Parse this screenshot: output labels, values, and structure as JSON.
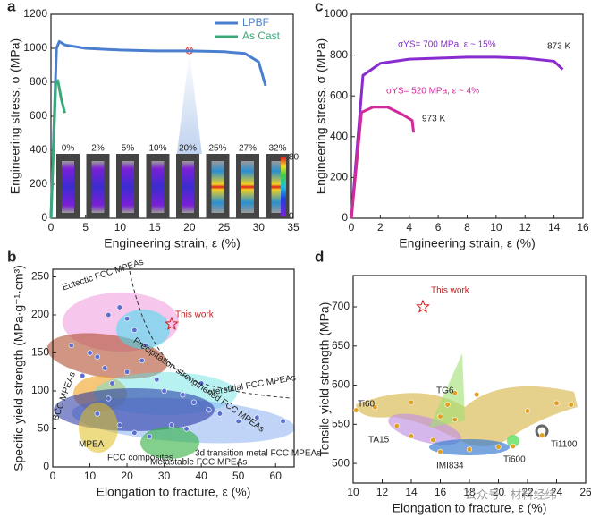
{
  "chart_data": [
    {
      "panel": "a",
      "type": "line",
      "xlabel": "Engineering strain, ε (%)",
      "ylabel": "Engineering stress, σ (MPa)",
      "xlim": [
        0,
        35
      ],
      "ylim": [
        0,
        1200
      ],
      "xticks": [
        0,
        5,
        10,
        15,
        20,
        25,
        30,
        35
      ],
      "yticks": [
        0,
        200,
        400,
        600,
        800,
        1000,
        1200
      ],
      "legend": "upper right",
      "series": [
        {
          "name": "LPBF",
          "color": "#4a7fd0",
          "x": [
            0,
            0.8,
            1.2,
            2,
            5,
            10,
            15,
            20,
            25,
            28,
            30,
            31
          ],
          "values": [
            0,
            1000,
            1040,
            1020,
            1000,
            990,
            985,
            985,
            980,
            970,
            920,
            780
          ]
        },
        {
          "name": "As Cast",
          "color": "#3aa878",
          "x": [
            0,
            0.7,
            1,
            1.5,
            2
          ],
          "values": [
            0,
            800,
            810,
            700,
            620
          ]
        }
      ],
      "inset_labels": [
        "0%",
        "2%",
        "5%",
        "10%",
        "20%",
        "25%",
        "27%",
        "32%"
      ],
      "colorbar_ticks": [
        0,
        80
      ]
    },
    {
      "panel": "c",
      "type": "line",
      "xlabel": "Engineering strain, ε (%)",
      "ylabel": "Engineering stress, σ (MPa)",
      "xlim": [
        0,
        16
      ],
      "ylim": [
        0,
        1000
      ],
      "xticks": [
        0,
        2,
        4,
        6,
        8,
        10,
        12,
        14,
        16
      ],
      "yticks": [
        0,
        200,
        400,
        600,
        800,
        1000
      ],
      "series": [
        {
          "color": "#8a2bd0",
          "x": [
            0,
            0.8,
            2,
            4,
            6,
            8,
            10,
            12,
            14,
            14.6
          ],
          "values": [
            0,
            700,
            760,
            780,
            785,
            790,
            790,
            785,
            770,
            730
          ]
        },
        {
          "color": "#d12a9a",
          "x": [
            0,
            0.7,
            1.5,
            2.5,
            3.5,
            4.2,
            4.3
          ],
          "values": [
            0,
            520,
            545,
            545,
            510,
            480,
            420
          ]
        }
      ],
      "annotations": [
        "σYS= 700 MPa, ε ~ 15%",
        "873 K",
        "σYS= 520 MPa, ε ~ 4%",
        "973 K"
      ]
    },
    {
      "panel": "b",
      "type": "scatter",
      "xlabel": "Elongation to fracture, ε (%)",
      "ylabel": "Specific yield strength (MPa·g⁻¹·cm³)",
      "xlim": [
        0,
        65
      ],
      "ylim": [
        0,
        260
      ],
      "xticks": [
        0,
        10,
        20,
        30,
        40,
        50,
        60
      ],
      "yticks": [
        0,
        50,
        100,
        150,
        200,
        250
      ],
      "color": "#5a6fd0",
      "points": {
        "x": [
          5,
          10,
          12,
          15,
          18,
          20,
          22,
          25,
          8,
          14,
          16,
          20,
          24,
          28,
          30,
          35,
          38,
          40,
          45,
          50,
          55,
          62,
          12,
          18,
          22,
          26,
          32,
          36,
          42,
          15
        ],
        "y": [
          160,
          150,
          145,
          200,
          210,
          195,
          180,
          160,
          120,
          130,
          110,
          125,
          140,
          115,
          100,
          95,
          85,
          110,
          70,
          60,
          65,
          60,
          70,
          55,
          45,
          40,
          55,
          50,
          75,
          90
        ]
      },
      "highlight": {
        "x": 32,
        "y": 188
      },
      "annotations": [
        "This work",
        "Eutectic FCC MPEAs",
        "Precipitation-strengthened FCC MPEAs",
        "Interstitial FCC MPEAs",
        "BCC MPEAs",
        "MPEA",
        "FCC composites",
        "Metastable FCC MPEAs",
        "3d transition metal FCC MPEAs"
      ]
    },
    {
      "panel": "d",
      "type": "scatter",
      "xlabel": "Elongation to fracture, ε (%)",
      "ylabel": "Tensile yield strength (MPa)",
      "xlim": [
        10,
        26
      ],
      "ylim": [
        475,
        740
      ],
      "xticks": [
        10,
        12,
        14,
        16,
        18,
        20,
        22,
        24,
        26
      ],
      "yticks": [
        500,
        550,
        600,
        650,
        700
      ],
      "color": "#e0a020",
      "points": {
        "x": [
          10.2,
          11.5,
          14,
          16,
          17,
          18.5,
          22,
          24,
          25,
          13,
          14,
          15.5,
          16,
          18,
          20,
          16.5,
          17,
          21,
          23
        ],
        "y": [
          568,
          572,
          578,
          560,
          556,
          588,
          567,
          577,
          575,
          548,
          535,
          530,
          515,
          518,
          521,
          575,
          590,
          522,
          536
        ]
      },
      "highlight": {
        "x": 14.8,
        "y": 700
      },
      "annotations": [
        "This work",
        "Ti60",
        "TG6",
        "TA15",
        "IMI834",
        "Ti600",
        "Ti1100"
      ]
    }
  ],
  "watermark": "公众号 · 材料经纬"
}
